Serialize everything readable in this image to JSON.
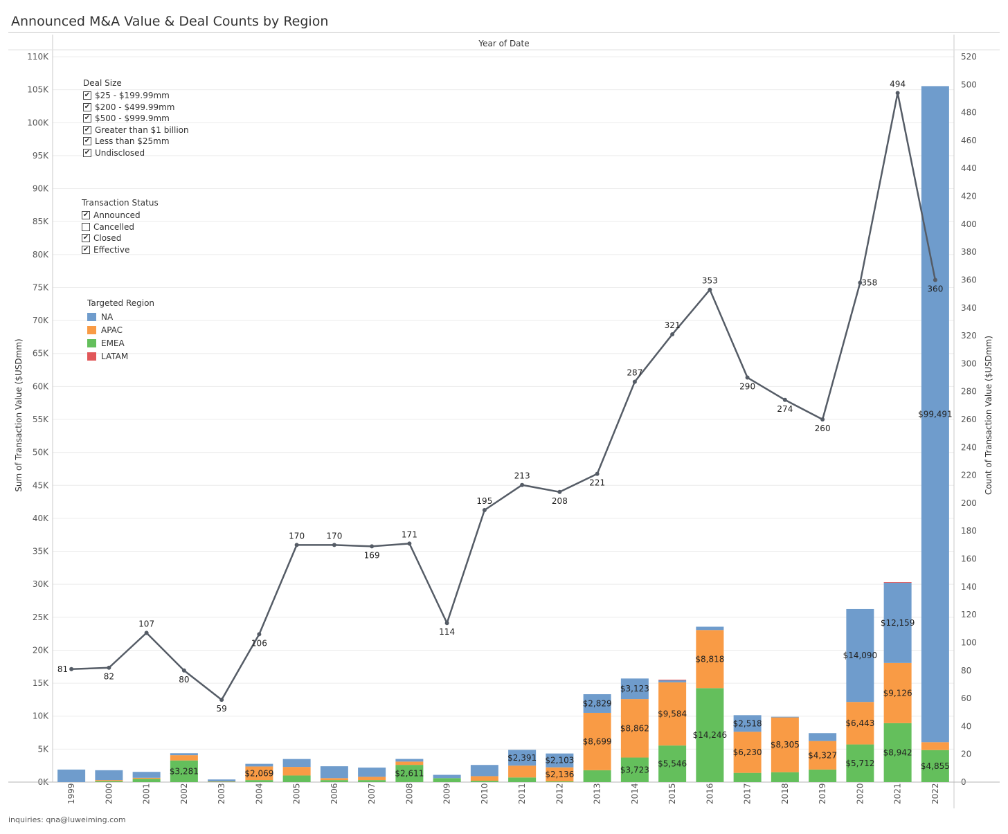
{
  "title": "Announced M&A Value & Deal Counts by Region",
  "footer": "inquiries: qna@luweiming.com",
  "legends": {
    "deal_size": {
      "title": "Deal Size",
      "items": [
        {
          "label": "$25 - $199.99mm",
          "checked": true
        },
        {
          "label": "$200 - $499.99mm",
          "checked": true
        },
        {
          "label": "$500 - $999.9mm",
          "checked": true
        },
        {
          "label": "Greater than $1 billion",
          "checked": true
        },
        {
          "label": "Less than $25mm",
          "checked": true
        },
        {
          "label": "Undisclosed",
          "checked": true
        }
      ]
    },
    "status": {
      "title": "Transaction Status",
      "items": [
        {
          "label": "Announced",
          "checked": true
        },
        {
          "label": "Cancelled",
          "checked": false
        },
        {
          "label": "Closed",
          "checked": true
        },
        {
          "label": "Effective",
          "checked": true
        }
      ]
    },
    "region": {
      "title": "Targeted Region",
      "items": [
        {
          "label": "NA",
          "color": "#6f9ccc"
        },
        {
          "label": "APAC",
          "color": "#f99b45"
        },
        {
          "label": "EMEA",
          "color": "#64bf5c"
        },
        {
          "label": "LATAM",
          "color": "#e15759"
        }
      ]
    }
  },
  "chart_data": {
    "type": "bar",
    "title": "Announced M&A Value & Deal Counts by Region",
    "xlabel": "Year of Date",
    "ylabel": "Sum of Transaction Value ($USDmm)",
    "y2label": "Count of Transaction Value ($USDmm)",
    "ylim": [
      0,
      110000
    ],
    "y2lim": [
      0,
      520
    ],
    "yticks": [
      "0K",
      "5K",
      "10K",
      "15K",
      "20K",
      "25K",
      "30K",
      "35K",
      "40K",
      "45K",
      "50K",
      "55K",
      "60K",
      "65K",
      "70K",
      "75K",
      "80K",
      "85K",
      "90K",
      "95K",
      "100K",
      "105K",
      "110K"
    ],
    "y2ticks": [
      "0",
      "20",
      "40",
      "60",
      "80",
      "100",
      "120",
      "140",
      "160",
      "180",
      "200",
      "220",
      "240",
      "260",
      "280",
      "300",
      "320",
      "340",
      "360",
      "380",
      "400",
      "420",
      "440",
      "460",
      "480",
      "500",
      "520"
    ],
    "categories": [
      "1999",
      "2000",
      "2001",
      "2002",
      "2003",
      "2004",
      "2005",
      "2006",
      "2007",
      "2008",
      "2009",
      "2010",
      "2011",
      "2012",
      "2013",
      "2014",
      "2015",
      "2016",
      "2017",
      "2018",
      "2019",
      "2020",
      "2021",
      "2022"
    ],
    "series": [
      {
        "name": "EMEA",
        "color": "#64bf5c",
        "values": [
          0,
          150,
          500,
          3281,
          50,
          300,
          1000,
          300,
          300,
          2611,
          600,
          200,
          700,
          100,
          1800,
          3723,
          5546,
          14246,
          1400,
          1500,
          1900,
          5712,
          8942,
          4855
        ]
      },
      {
        "name": "APAC",
        "color": "#f99b45",
        "values": [
          0,
          150,
          150,
          800,
          50,
          2069,
          1300,
          300,
          500,
          500,
          0,
          700,
          1800,
          2136,
          8699,
          8862,
          9584,
          8818,
          6230,
          8305,
          4327,
          6443,
          9126,
          1200
        ]
      },
      {
        "name": "NA",
        "color": "#6f9ccc",
        "values": [
          1900,
          1500,
          900,
          300,
          300,
          400,
          1200,
          1800,
          1400,
          400,
          500,
          1700,
          2391,
          2103,
          2829,
          3123,
          300,
          500,
          2518,
          100,
          1200,
          14090,
          12159,
          99491
        ]
      },
      {
        "name": "LATAM",
        "color": "#e15759",
        "values": [
          0,
          0,
          0,
          0,
          0,
          0,
          0,
          0,
          0,
          0,
          0,
          0,
          0,
          0,
          0,
          0,
          100,
          0,
          0,
          0,
          0,
          0,
          100,
          0
        ]
      }
    ],
    "bar_labels": [
      {
        "year": "2002",
        "series": "EMEA",
        "text": "$3,281"
      },
      {
        "year": "2004",
        "series": "APAC",
        "text": "$2,069"
      },
      {
        "year": "2008",
        "series": "EMEA",
        "text": "$2,611"
      },
      {
        "year": "2011",
        "series": "NA",
        "text": "$2,391"
      },
      {
        "year": "2012",
        "series": "APAC",
        "text": "$2,136"
      },
      {
        "year": "2012",
        "series": "NA",
        "text": "$2,103"
      },
      {
        "year": "2013",
        "series": "APAC",
        "text": "$8,699"
      },
      {
        "year": "2013",
        "series": "NA",
        "text": "$2,829"
      },
      {
        "year": "2014",
        "series": "EMEA",
        "text": "$3,723"
      },
      {
        "year": "2014",
        "series": "APAC",
        "text": "$8,862"
      },
      {
        "year": "2014",
        "series": "NA",
        "text": "$3,123"
      },
      {
        "year": "2015",
        "series": "EMEA",
        "text": "$5,546"
      },
      {
        "year": "2015",
        "series": "APAC",
        "text": "$9,584"
      },
      {
        "year": "2016",
        "series": "EMEA",
        "text": "$14,246"
      },
      {
        "year": "2016",
        "series": "APAC",
        "text": "$8,818"
      },
      {
        "year": "2017",
        "series": "APAC",
        "text": "$6,230"
      },
      {
        "year": "2017",
        "series": "NA",
        "text": "$2,518"
      },
      {
        "year": "2018",
        "series": "APAC",
        "text": "$8,305"
      },
      {
        "year": "2019",
        "series": "APAC",
        "text": "$4,327"
      },
      {
        "year": "2020",
        "series": "EMEA",
        "text": "$5,712"
      },
      {
        "year": "2020",
        "series": "APAC",
        "text": "$6,443"
      },
      {
        "year": "2020",
        "series": "NA",
        "text": "$14,090"
      },
      {
        "year": "2021",
        "series": "EMEA",
        "text": "$8,942"
      },
      {
        "year": "2021",
        "series": "APAC",
        "text": "$9,126"
      },
      {
        "year": "2021",
        "series": "NA",
        "text": "$12,159"
      },
      {
        "year": "2022",
        "series": "EMEA",
        "text": "$4,855"
      },
      {
        "year": "2022",
        "series": "NA",
        "text": "$99,491"
      }
    ],
    "line": {
      "color": "#555c66",
      "axis": "right",
      "values": [
        81,
        82,
        107,
        80,
        59,
        106,
        170,
        170,
        169,
        171,
        114,
        195,
        213,
        208,
        221,
        287,
        321,
        353,
        290,
        274,
        260,
        358,
        494,
        360
      ],
      "label_pos": [
        "left",
        "below",
        "above",
        "below",
        "below",
        "below",
        "above",
        "above",
        "below",
        "above",
        "below",
        "above",
        "above",
        "below",
        "below",
        "above",
        "above",
        "above",
        "below",
        "below",
        "below",
        "right",
        "above",
        "below"
      ]
    },
    "legend_position": "top-left, inside plot",
    "grid": true
  }
}
